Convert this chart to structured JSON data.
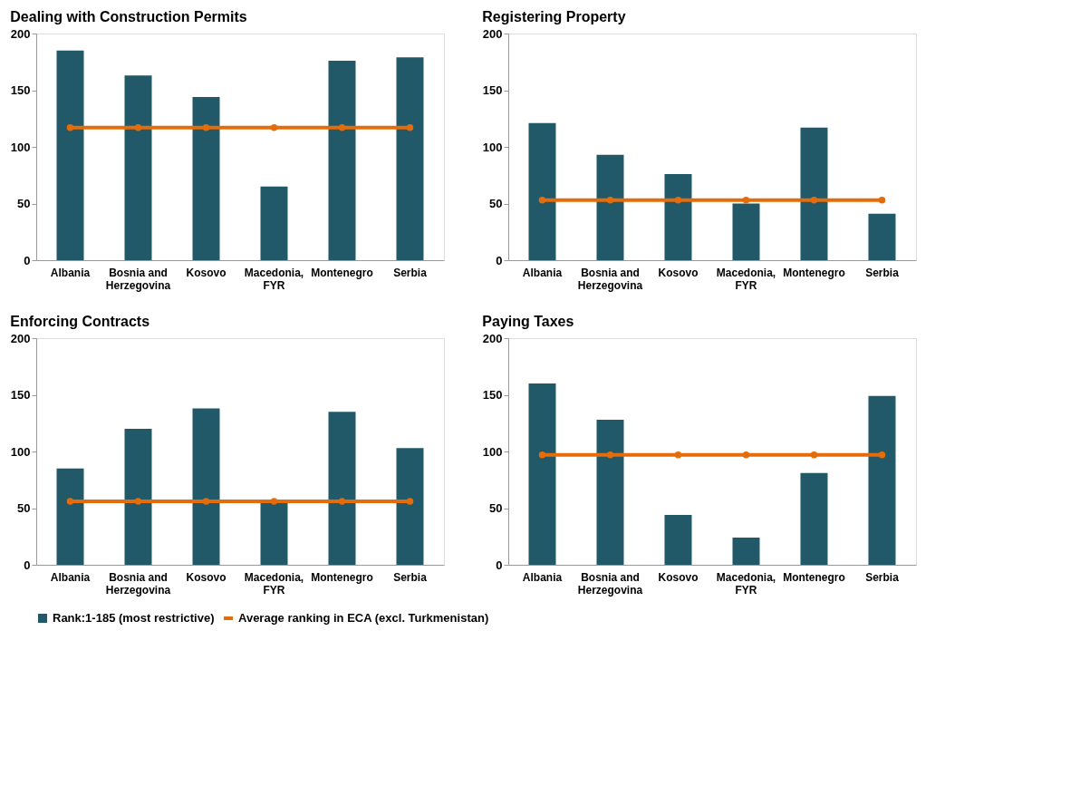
{
  "chart_data": [
    {
      "type": "bar",
      "title": "Dealing with Construction Permits",
      "categories": [
        "Albania",
        "Bosnia and Herzegovina",
        "Kosovo",
        "Macedonia, FYR",
        "Montenegro",
        "Serbia"
      ],
      "ylim": [
        0,
        200
      ],
      "yticks": [
        0,
        50,
        100,
        150,
        200
      ],
      "grid": false,
      "legend": "bottom",
      "marker": "circle",
      "series": [
        {
          "name": "Rank:1-185 (most restrictive)",
          "color": "#215968",
          "values": [
            185,
            163,
            144,
            65,
            176,
            179
          ]
        },
        {
          "name": "Average ranking in ECA (excl. Turkmenistan)",
          "type": "line",
          "color": "#e46c0a",
          "values": [
            117,
            117,
            117,
            117,
            117,
            117
          ]
        }
      ]
    },
    {
      "type": "bar",
      "title": "Registering Property",
      "categories": [
        "Albania",
        "Bosnia and Herzegovina",
        "Kosovo",
        "Macedonia, FYR",
        "Montenegro",
        "Serbia"
      ],
      "ylim": [
        0,
        200
      ],
      "yticks": [
        0,
        50,
        100,
        150,
        200
      ],
      "grid": false,
      "legend": "bottom",
      "marker": "circle",
      "series": [
        {
          "name": "Rank:1-185 (most restrictive)",
          "color": "#215968",
          "values": [
            121,
            93,
            76,
            50,
            117,
            41
          ]
        },
        {
          "name": "Average ranking in ECA (excl. Turkmenistan)",
          "type": "line",
          "color": "#e46c0a",
          "values": [
            53,
            53,
            53,
            53,
            53,
            53
          ]
        }
      ]
    },
    {
      "type": "bar",
      "title": "Enforcing Contracts",
      "categories": [
        "Albania",
        "Bosnia and Herzegovina",
        "Kosovo",
        "Macedonia, FYR",
        "Montenegro",
        "Serbia"
      ],
      "ylim": [
        0,
        200
      ],
      "yticks": [
        0,
        50,
        100,
        150,
        200
      ],
      "grid": false,
      "legend": "bottom",
      "marker": "circle",
      "series": [
        {
          "name": "Rank:1-185 (most restrictive)",
          "color": "#215968",
          "values": [
            85,
            120,
            138,
            57,
            135,
            103
          ]
        },
        {
          "name": "Average ranking in ECA (excl. Turkmenistan)",
          "type": "line",
          "color": "#e46c0a",
          "values": [
            56,
            56,
            56,
            56,
            56,
            56
          ]
        }
      ]
    },
    {
      "type": "bar",
      "title": "Paying Taxes",
      "categories": [
        "Albania",
        "Bosnia and Herzegovina",
        "Kosovo",
        "Macedonia, FYR",
        "Montenegro",
        "Serbia"
      ],
      "ylim": [
        0,
        200
      ],
      "yticks": [
        0,
        50,
        100,
        150,
        200
      ],
      "grid": false,
      "legend": "bottom",
      "marker": "circle",
      "series": [
        {
          "name": "Rank:1-185 (most restrictive)",
          "color": "#215968",
          "values": [
            160,
            128,
            44,
            24,
            81,
            149
          ]
        },
        {
          "name": "Average ranking in ECA (excl. Turkmenistan)",
          "type": "line",
          "color": "#e46c0a",
          "values": [
            97,
            97,
            97,
            97,
            97,
            97
          ]
        }
      ]
    }
  ]
}
